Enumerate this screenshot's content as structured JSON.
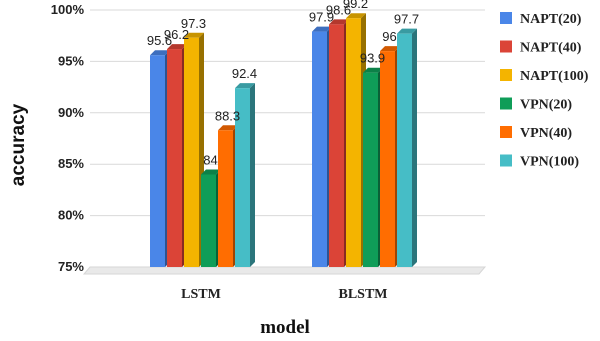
{
  "chart_data": {
    "type": "bar",
    "categories": [
      "LSTM",
      "BLSTM"
    ],
    "series": [
      {
        "name": "NAPT(20)",
        "values": [
          95.6,
          97.9
        ],
        "color": "#4a86e8"
      },
      {
        "name": "NAPT(40)",
        "values": [
          96.2,
          98.6
        ],
        "color": "#db4437"
      },
      {
        "name": "NAPT(100)",
        "values": [
          97.3,
          99.2
        ],
        "color": "#f4b400"
      },
      {
        "name": "VPN(20)",
        "values": [
          84,
          93.9
        ],
        "color": "#0f9d58"
      },
      {
        "name": "VPN(40)",
        "values": [
          88.3,
          96
        ],
        "color": "#ff6d01"
      },
      {
        "name": "VPN(100)",
        "values": [
          92.4,
          97.7
        ],
        "color": "#46bdc6"
      }
    ],
    "data_labels": [
      [
        "95.6",
        "96.2",
        "97.3",
        "84",
        "88.3",
        "92.4"
      ],
      [
        "97.9",
        "98.6",
        "99.2",
        "93.9",
        "96",
        "97.7"
      ]
    ],
    "yticks": [
      "75%",
      "80%",
      "85%",
      "90%",
      "95%",
      "100%"
    ],
    "ylim": [
      75,
      100
    ],
    "xlabel": "model",
    "ylabel": "accuracy",
    "grid": true,
    "legend": "right"
  }
}
